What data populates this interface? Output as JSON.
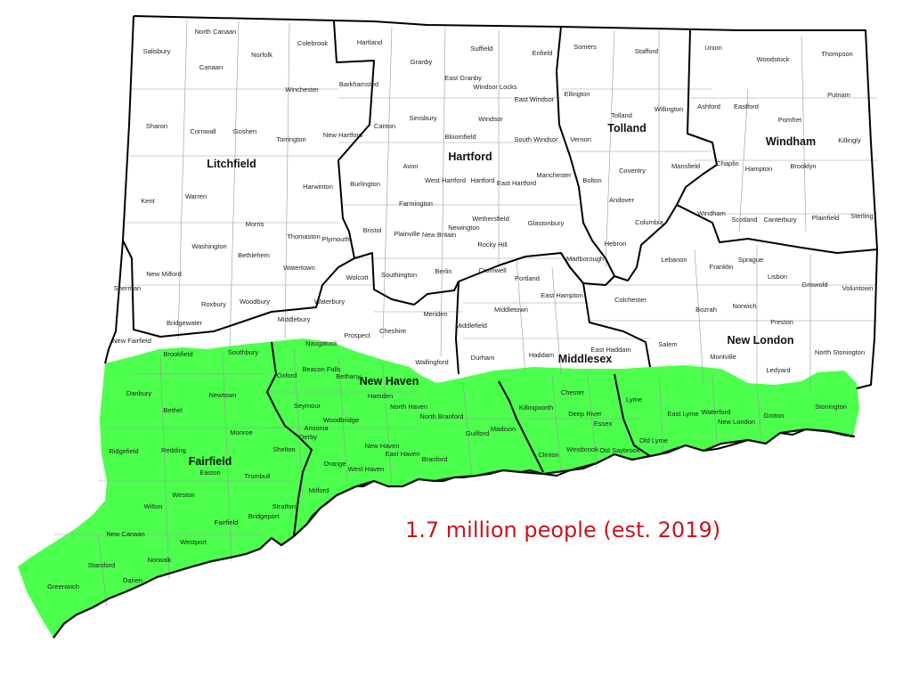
{
  "map": {
    "colors": {
      "highlight": "#4cff4c",
      "highlight_text": "#c8141c",
      "county_border": "#000000",
      "town_border": "#999999",
      "background": "#ffffff"
    },
    "annotation": "1.7 million people (est. 2019)",
    "counties": [
      "Litchfield",
      "Hartford",
      "Tolland",
      "Windham",
      "Fairfield",
      "New Haven",
      "Middlesex",
      "New London"
    ],
    "towns": [
      "North Canaan",
      "Salisbury",
      "Canaan",
      "Norfolk",
      "Colebrook",
      "Hartland",
      "Granby",
      "Suffield",
      "Enfield",
      "Somers",
      "Stafford",
      "Union",
      "Woodstock",
      "Thompson",
      "East Granby",
      "Windsor Locks",
      "Winchester",
      "Barkhamsted",
      "East Windsor",
      "Ellington",
      "Putnam",
      "Sharon",
      "Cornwall",
      "Goshen",
      "Torrington",
      "New Hartford",
      "Canton",
      "Simsbury",
      "Windsor",
      "Tolland",
      "Willington",
      "Ashford",
      "Eastford",
      "Pomfret",
      "Killingly",
      "Bloomfield",
      "South Windsor",
      "Vernon",
      "Avon",
      "Manchester",
      "Coventry",
      "Mansfield",
      "Chaplin",
      "Hampton",
      "Brooklyn",
      "Burlington",
      "West Hartford",
      "Hartford",
      "East Hartford",
      "Bolton",
      "Kent",
      "Warren",
      "Harwinton",
      "Farmington",
      "Andover",
      "Wethersfield",
      "Glastonbury",
      "Columbia",
      "Windham",
      "Scotland",
      "Canterbury",
      "Plainfield",
      "Sterling",
      "Morris",
      "Newington",
      "Washington",
      "Thomaston",
      "Plymouth",
      "Bristol",
      "Plainville",
      "New Britain",
      "Rocky Hill",
      "Hebron",
      "Bethlehem",
      "Watertown",
      "Lebanon",
      "Franklin",
      "Sprague",
      "Lisbon",
      "Griswold",
      "Voluntown",
      "New Milford",
      "Wolcott",
      "Southington",
      "Berlin",
      "Cromwell",
      "Portland",
      "Marlborough",
      "Sherman",
      "Roxbury",
      "Woodbury",
      "Waterbury",
      "East Hampton",
      "Colchester",
      "Bozrah",
      "Norwich",
      "Middlebury",
      "Meriden",
      "Middletown",
      "Bridgewater",
      "Cheshire",
      "Middlefield",
      "Preston",
      "New Fairfield",
      "Prospect",
      "Naugatuck",
      "Brookfield",
      "Southbury",
      "Wallingford",
      "Durham",
      "Haddam",
      "East Haddam",
      "Salem",
      "Montville",
      "North Stonington",
      "Ledyard",
      "Oxford",
      "Beacon Falls",
      "Bethany",
      "Danbury",
      "Newtown",
      "Hamden",
      "Chester",
      "Lyme",
      "Seymour",
      "North Haven",
      "Killingworth",
      "Deep River",
      "Bethel",
      "Woodbridge",
      "North Branford",
      "East Lyme",
      "Waterford",
      "Groton",
      "Stonington",
      "Ansonia",
      "Monroe",
      "Essex",
      "Madison",
      "Guilford",
      "Derby",
      "New London",
      "Old Lyme",
      "Ridgefield",
      "Redding",
      "Shelton",
      "New Haven",
      "Old Saybrook",
      "Westbrook",
      "East Haven",
      "Orange",
      "Clinton",
      "Branford",
      "Easton",
      "Trumbull",
      "West Haven",
      "Weston",
      "Milford",
      "Wilton",
      "Stratford",
      "Fairfield",
      "Bridgeport",
      "New Canaan",
      "Westport",
      "Norwalk",
      "Stamford",
      "Darien",
      "Greenwich"
    ]
  }
}
